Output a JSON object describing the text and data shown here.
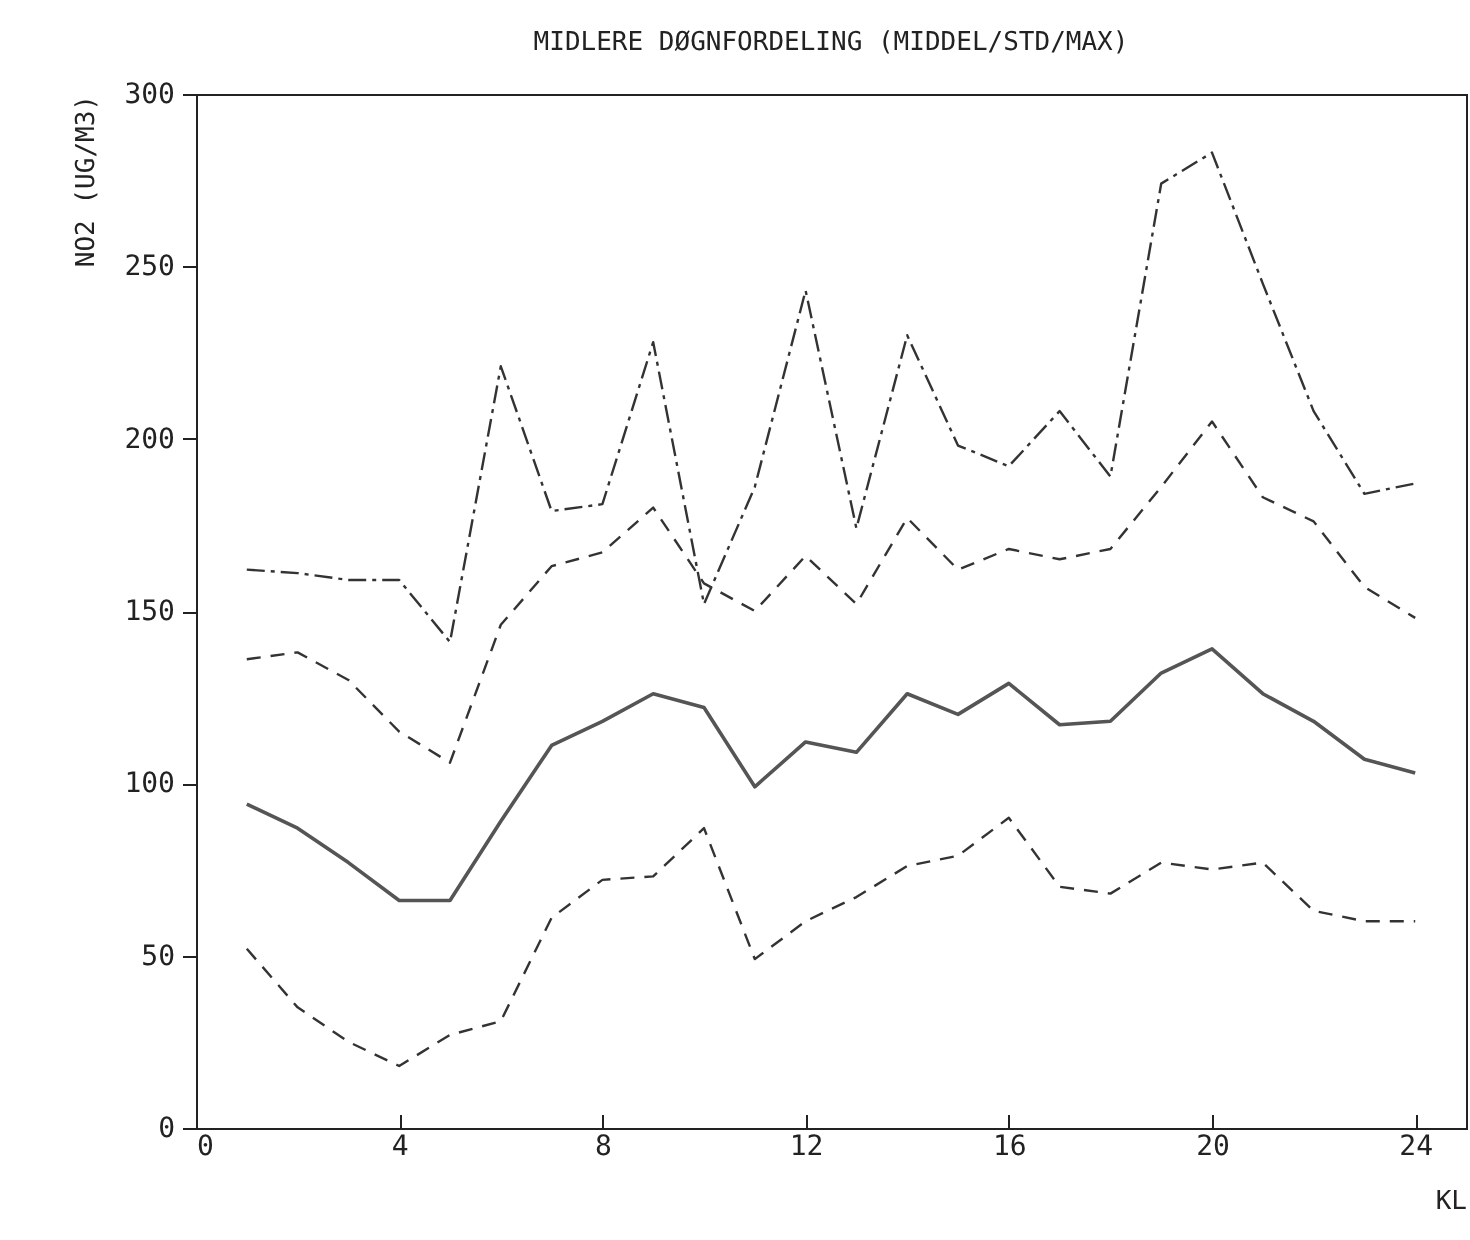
{
  "chart_data": {
    "type": "line",
    "title": "MIDLERE DØGNFORDELING (MIDDEL/STD/MAX)",
    "xlabel": "KL",
    "ylabel": "NO2 (UG/M3)",
    "x": [
      1,
      2,
      3,
      4,
      5,
      6,
      7,
      8,
      9,
      10,
      11,
      12,
      13,
      14,
      15,
      16,
      17,
      18,
      19,
      20,
      21,
      22,
      23,
      24
    ],
    "xlim": [
      0,
      25
    ],
    "xticks": [
      0,
      4,
      8,
      12,
      16,
      20,
      24
    ],
    "ylim": [
      0,
      300
    ],
    "yticks": [
      0,
      50,
      100,
      150,
      200,
      250,
      300
    ],
    "marker": "none",
    "series": [
      {
        "color": "#333333",
        "line_style": "dashdot",
        "values": [
          162,
          161,
          159,
          159,
          141,
          221,
          179,
          181,
          228,
          152,
          186,
          243,
          174,
          230,
          198,
          192,
          208,
          189,
          274,
          283,
          245,
          208,
          184,
          187
        ]
      },
      {
        "color": "#333333",
        "line_style": "dashed",
        "values": [
          136,
          138,
          130,
          115,
          106,
          146,
          163,
          167,
          180,
          158,
          150,
          166,
          152,
          177,
          162,
          168,
          165,
          168,
          186,
          205,
          183,
          176,
          157,
          148
        ]
      },
      {
        "color": "#555555",
        "line_style": "solid",
        "values": [
          94,
          87,
          77,
          66,
          66,
          89,
          111,
          118,
          126,
          122,
          99,
          112,
          109,
          126,
          120,
          129,
          117,
          118,
          132,
          139,
          126,
          118,
          107,
          103
        ]
      },
      {
        "color": "#333333",
        "line_style": "dashed",
        "values": [
          52,
          35,
          25,
          18,
          27,
          31,
          61,
          72,
          73,
          87,
          49,
          60,
          67,
          76,
          79,
          90,
          70,
          68,
          77,
          75,
          77,
          63,
          60,
          60
        ]
      }
    ]
  }
}
